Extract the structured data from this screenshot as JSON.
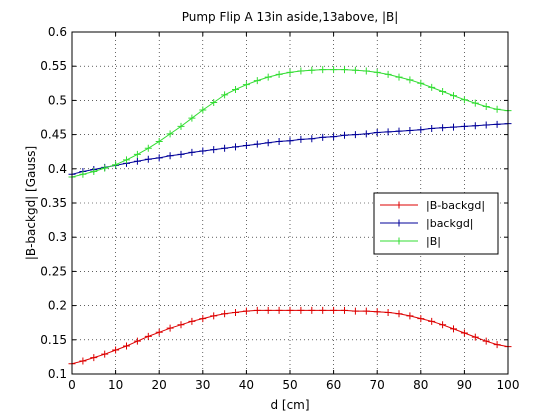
{
  "chart_data": {
    "type": "line",
    "title": "Pump Flip A 13in aside,13above, |B|",
    "xlabel": "d [cm]",
    "ylabel": "|B-backgd| [Gauss]",
    "xlim": [
      0,
      100
    ],
    "ylim": [
      0.1,
      0.6
    ],
    "xticks": [
      0,
      10,
      20,
      30,
      40,
      50,
      60,
      70,
      80,
      90,
      100
    ],
    "yticks": [
      0.1,
      0.15,
      0.2,
      0.25,
      0.3,
      0.35,
      0.4,
      0.45,
      0.5,
      0.55,
      0.6
    ],
    "grid": true,
    "legend_position": "right",
    "x": [
      0,
      2.5,
      5,
      7.5,
      10,
      12.5,
      15,
      17.5,
      20,
      22.5,
      25,
      27.5,
      30,
      32.5,
      35,
      37.5,
      40,
      42.5,
      45,
      47.5,
      50,
      52.5,
      55,
      57.5,
      60,
      62.5,
      65,
      67.5,
      70,
      72.5,
      75,
      77.5,
      80,
      82.5,
      85,
      87.5,
      90,
      92.5,
      95,
      97.5,
      100
    ],
    "series": [
      {
        "name": "|B-backgd|",
        "color": "#dd0000",
        "marker": "+",
        "values": [
          0.115,
          0.119,
          0.124,
          0.129,
          0.135,
          0.141,
          0.148,
          0.155,
          0.161,
          0.167,
          0.172,
          0.177,
          0.181,
          0.185,
          0.188,
          0.19,
          0.192,
          0.193,
          0.193,
          0.193,
          0.193,
          0.193,
          0.193,
          0.193,
          0.193,
          0.193,
          0.192,
          0.192,
          0.191,
          0.19,
          0.188,
          0.185,
          0.181,
          0.177,
          0.172,
          0.166,
          0.16,
          0.154,
          0.148,
          0.143,
          0.14
        ]
      },
      {
        "name": "|backgd|",
        "color": "#000099",
        "marker": "+",
        "values": [
          0.392,
          0.396,
          0.399,
          0.402,
          0.405,
          0.408,
          0.411,
          0.414,
          0.416,
          0.419,
          0.421,
          0.424,
          0.426,
          0.428,
          0.43,
          0.432,
          0.434,
          0.436,
          0.438,
          0.44,
          0.441,
          0.443,
          0.444,
          0.446,
          0.447,
          0.449,
          0.45,
          0.451,
          0.453,
          0.454,
          0.455,
          0.456,
          0.457,
          0.459,
          0.46,
          0.461,
          0.462,
          0.463,
          0.464,
          0.465,
          0.466
        ]
      },
      {
        "name": "|B|",
        "color": "#33dd33",
        "marker": "+",
        "values": [
          0.388,
          0.392,
          0.396,
          0.401,
          0.406,
          0.413,
          0.421,
          0.43,
          0.44,
          0.451,
          0.462,
          0.474,
          0.486,
          0.497,
          0.508,
          0.516,
          0.523,
          0.529,
          0.534,
          0.538,
          0.541,
          0.543,
          0.544,
          0.545,
          0.545,
          0.545,
          0.544,
          0.543,
          0.541,
          0.538,
          0.534,
          0.53,
          0.525,
          0.519,
          0.513,
          0.507,
          0.501,
          0.496,
          0.491,
          0.487,
          0.485
        ]
      }
    ]
  }
}
